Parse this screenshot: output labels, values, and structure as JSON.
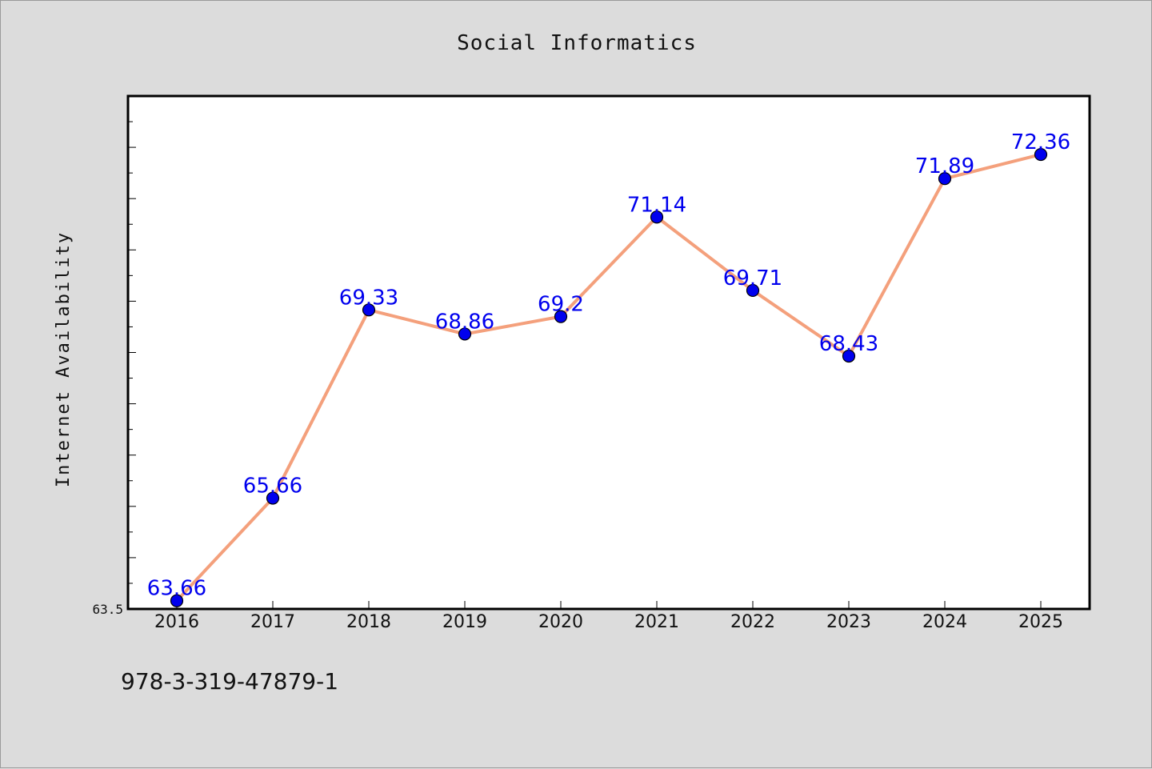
{
  "chart_data": {
    "type": "line",
    "title": "Social Informatics",
    "xlabel": "",
    "ylabel": "Internet Availability",
    "categories": [
      "2016",
      "2017",
      "2018",
      "2019",
      "2020",
      "2021",
      "2022",
      "2023",
      "2024",
      "2025"
    ],
    "series": [
      {
        "values": [
          63.66,
          65.66,
          69.33,
          68.86,
          69.2,
          71.14,
          69.71,
          68.43,
          71.89,
          72.36
        ],
        "data_labels": [
          "63.66",
          "65.66",
          "69.33",
          "68.86",
          "69.2",
          "71.14",
          "69.71",
          "68.43",
          "71.89",
          "72.36"
        ]
      }
    ],
    "ylim": [
      63.5,
      73.5
    ],
    "y_tick_labels": [
      "63.5"
    ],
    "grid": false,
    "legend": "none",
    "colors": {
      "line": "#f4a07c",
      "marker": "#0000ee",
      "label": "#0000ee"
    }
  },
  "footer": {
    "isbn": "978-3-319-47879-1"
  }
}
